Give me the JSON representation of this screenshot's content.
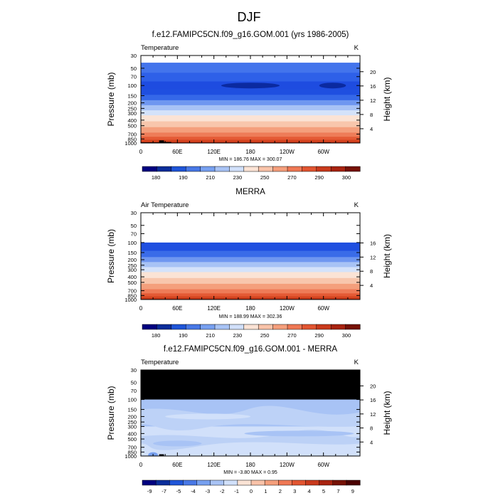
{
  "figure": {
    "title": "DJF"
  },
  "chart_data": [
    {
      "type": "heatmap",
      "title": "f.e12.FAMIPC5CN.f09_g16.GOM.001 (yrs 1986-2005)",
      "left_label": "Temperature",
      "units_label": "K",
      "xlabel": "",
      "ylabel": "Pressure (mb)",
      "y2label": "Height (km)",
      "x_ticks": [
        "0",
        "60E",
        "120E",
        "180",
        "120W",
        "60W"
      ],
      "y_ticks": [
        "30",
        "50",
        "70",
        "100",
        "150",
        "200",
        "250",
        "300",
        "400",
        "500",
        "700",
        "850",
        "1000"
      ],
      "height_ticks": [
        "20",
        "16",
        "12",
        "8",
        "4"
      ],
      "stats": "MIN = 186.76  MAX = 300.07",
      "colorbar_labels": [
        "180",
        "190",
        "210",
        "230",
        "250",
        "270",
        "290",
        "300"
      ],
      "colorbar_colors": [
        "#000080",
        "#0a2d9a",
        "#1f55d8",
        "#4878e6",
        "#77a0f0",
        "#a8c3f5",
        "#d1e0fa",
        "#fbe3d5",
        "#f9c3a9",
        "#f59f7c",
        "#ef7854",
        "#e25531",
        "#c93a1c",
        "#a82310",
        "#761104"
      ],
      "bands": [
        {
          "p": 30,
          "color": "#ffffff"
        },
        {
          "p": 40,
          "color": "#4374ec"
        },
        {
          "p": 60,
          "color": "#2e60e8"
        },
        {
          "p": 85,
          "color": "#1e4ce0"
        },
        {
          "p": 115,
          "color": "#1f4fe0"
        },
        {
          "p": 145,
          "color": "#3568e8"
        },
        {
          "p": 180,
          "color": "#6f97f0"
        },
        {
          "p": 220,
          "color": "#a8c3f5"
        },
        {
          "p": 270,
          "color": "#d4e2fa"
        },
        {
          "p": 330,
          "color": "#fbe3d5"
        },
        {
          "p": 420,
          "color": "#f8c6ac"
        },
        {
          "p": 530,
          "color": "#f49f7c"
        },
        {
          "p": 660,
          "color": "#ee7c58"
        },
        {
          "p": 780,
          "color": "#e45a35"
        },
        {
          "p": 880,
          "color": "#d4441f"
        },
        {
          "p": 960,
          "color": "#b82a12"
        }
      ],
      "blobs": [
        {
          "lon": 180,
          "p": 100,
          "lon_w": 48,
          "color": "#0b2aa0"
        },
        {
          "lon": 315,
          "p": 100,
          "lon_w": 22,
          "color": "#0b2aa0"
        }
      ],
      "terrain": [
        {
          "lon0": 0,
          "lon1": 30,
          "p": 975
        },
        {
          "lon0": 30,
          "lon1": 38,
          "p": 900
        },
        {
          "lon0": 38,
          "lon1": 50,
          "p": 960
        },
        {
          "lon0": 90,
          "lon1": 100,
          "p": 985
        },
        {
          "lon0": 125,
          "lon1": 145,
          "p": 985
        },
        {
          "lon0": 290,
          "lon1": 312,
          "p": 978
        }
      ]
    },
    {
      "type": "heatmap",
      "title": "MERRA",
      "left_label": "Air Temperature",
      "units_label": "K",
      "xlabel": "",
      "ylabel": "Pressure (mb)",
      "y2label": "Height (km)",
      "x_ticks": [
        "0",
        "60E",
        "120E",
        "180",
        "120W",
        "60W"
      ],
      "y_ticks": [
        "30",
        "50",
        "70",
        "100",
        "150",
        "200",
        "250",
        "300",
        "400",
        "500",
        "700",
        "850",
        "1000"
      ],
      "height_ticks": [
        "16",
        "12",
        "8",
        "4"
      ],
      "stats": "MIN = 188.99  MAX = 302.36",
      "colorbar_labels": [
        "180",
        "190",
        "210",
        "230",
        "250",
        "270",
        "290",
        "300"
      ],
      "colorbar_colors": [
        "#000080",
        "#0a2d9a",
        "#1f55d8",
        "#4878e6",
        "#77a0f0",
        "#a8c3f5",
        "#d1e0fa",
        "#fbe3d5",
        "#f9c3a9",
        "#f59f7c",
        "#ef7854",
        "#e25531",
        "#c93a1c",
        "#a82310",
        "#761104"
      ],
      "bands": [
        {
          "p": 30,
          "color": "#ffffff"
        },
        {
          "p": 100,
          "color": "#1f4fe0"
        },
        {
          "p": 140,
          "color": "#3a6ce8"
        },
        {
          "p": 180,
          "color": "#6f97f0"
        },
        {
          "p": 220,
          "color": "#a8c3f5"
        },
        {
          "p": 270,
          "color": "#d4e2fa"
        },
        {
          "p": 330,
          "color": "#fbe3d5"
        },
        {
          "p": 420,
          "color": "#f8c6ac"
        },
        {
          "p": 530,
          "color": "#f49f7c"
        },
        {
          "p": 660,
          "color": "#ee7c58"
        },
        {
          "p": 780,
          "color": "#e45a35"
        },
        {
          "p": 880,
          "color": "#d4441f"
        },
        {
          "p": 960,
          "color": "#b82a12"
        }
      ],
      "blobs": [],
      "terrain": [
        {
          "lon0": 15,
          "lon1": 35,
          "p": 985
        }
      ]
    },
    {
      "type": "heatmap",
      "title": "f.e12.FAMIPC5CN.f09_g16.GOM.001 - MERRA",
      "left_label": "Temperature",
      "units_label": "K",
      "xlabel": "",
      "ylabel": "Pressure (mb)",
      "y2label": "Height (km)",
      "x_ticks": [
        "0",
        "60E",
        "120E",
        "180",
        "120W",
        "60W"
      ],
      "y_ticks": [
        "30",
        "50",
        "70",
        "100",
        "150",
        "200",
        "250",
        "300",
        "400",
        "500",
        "700",
        "850",
        "1000"
      ],
      "height_ticks": [
        "20",
        "16",
        "12",
        "8",
        "4"
      ],
      "stats": "MIN = -3.80  MAX =  0.95",
      "colorbar_labels": [
        "-9",
        "-7",
        "-5",
        "-4",
        "-3",
        "-2",
        "-1",
        "0",
        "1",
        "2",
        "3",
        "4",
        "5",
        "7",
        "9"
      ],
      "colorbar_colors": [
        "#000080",
        "#0a2d9a",
        "#1f55d8",
        "#4878e6",
        "#77a0f0",
        "#a8c3f5",
        "#d1e0fa",
        "#fbe3d5",
        "#f9c3a9",
        "#f59f7c",
        "#ef7854",
        "#e25531",
        "#c93a1c",
        "#a82310",
        "#761104",
        "#4a0000"
      ],
      "bands": [
        {
          "p": 30,
          "color": "#000000"
        },
        {
          "p": 100,
          "color": "#a8c3f5"
        },
        {
          "p": 300,
          "color": "#d1e0fa"
        },
        {
          "p": 700,
          "color": "#d1e0fa"
        }
      ],
      "blobs": [
        {
          "lon": 110,
          "p": 200,
          "lon_w": 70,
          "color": "#d1e0fa"
        },
        {
          "lon": 260,
          "p": 400,
          "lon_w": 90,
          "color": "#a8c3f5"
        },
        {
          "lon": 60,
          "p": 600,
          "lon_w": 40,
          "color": "#a8c3f5"
        },
        {
          "lon": 20,
          "p": 960,
          "lon_w": 8,
          "color": "#77a0f0"
        }
      ],
      "terrain": [
        {
          "lon0": 0,
          "lon1": 30,
          "p": 985
        },
        {
          "lon0": 30,
          "lon1": 38,
          "p": 930
        },
        {
          "lon0": 90,
          "lon1": 100,
          "p": 990
        },
        {
          "lon0": 125,
          "lon1": 145,
          "p": 985
        },
        {
          "lon0": 290,
          "lon1": 312,
          "p": 985
        }
      ]
    }
  ]
}
